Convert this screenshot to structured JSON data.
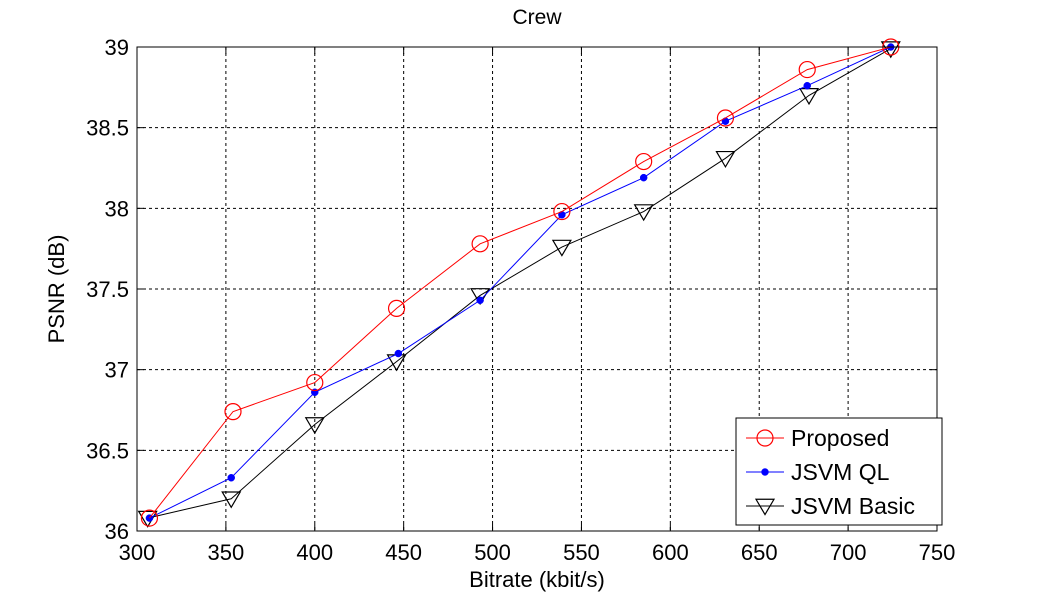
{
  "chart_data": {
    "type": "line",
    "title": "Crew",
    "xlabel": "Bitrate (kbit/s)",
    "ylabel": "PSNR (dB)",
    "xlim": [
      300,
      750
    ],
    "ylim": [
      36,
      39
    ],
    "xticks": [
      300,
      350,
      400,
      450,
      500,
      550,
      600,
      650,
      700,
      750
    ],
    "yticks": [
      36,
      36.5,
      37,
      37.5,
      38,
      38.5,
      39
    ],
    "grid": true,
    "legend_position": "bottom-right",
    "series": [
      {
        "name": "Proposed",
        "color": "#ff0000",
        "marker": "circle",
        "x": [
          307,
          354,
          400,
          446,
          493,
          539,
          585,
          631,
          677,
          724
        ],
        "y": [
          36.08,
          36.74,
          36.92,
          37.38,
          37.78,
          37.98,
          38.29,
          38.56,
          38.86,
          39.0
        ]
      },
      {
        "name": "JSVM QL",
        "color": "#0000ff",
        "marker": "dot",
        "x": [
          307,
          353,
          400,
          447,
          493,
          539,
          585,
          631,
          677,
          724
        ],
        "y": [
          36.08,
          36.33,
          36.86,
          37.1,
          37.43,
          37.96,
          38.19,
          38.54,
          38.76,
          39.0
        ]
      },
      {
        "name": "JSVM Basic",
        "color": "#000000",
        "marker": "triangle-down",
        "x": [
          306,
          353,
          400,
          446,
          493,
          539,
          585,
          631,
          678,
          724
        ],
        "y": [
          36.08,
          36.2,
          36.66,
          37.05,
          37.46,
          37.76,
          37.98,
          38.31,
          38.7,
          38.99
        ]
      }
    ]
  }
}
